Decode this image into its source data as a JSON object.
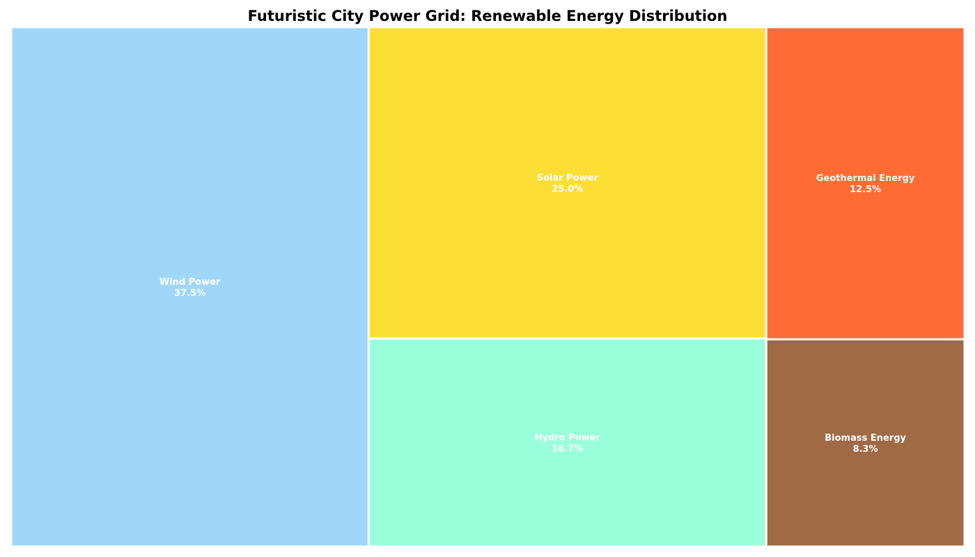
{
  "chart_data": {
    "type": "treemap",
    "title": "Futuristic City Power Grid: Renewable Energy Distribution",
    "unit": "%",
    "items": [
      {
        "name": "Wind Power",
        "value": 37.5,
        "label": "37.5%",
        "color": "#A0D7F8"
      },
      {
        "name": "Solar Power",
        "value": 25.0,
        "label": "25.0%",
        "color": "#FDDE35"
      },
      {
        "name": "Hydro Power",
        "value": 16.7,
        "label": "16.7%",
        "color": "#99FFDA"
      },
      {
        "name": "Geothermal Energy",
        "value": 12.5,
        "label": "12.5%",
        "color": "#FF6B35"
      },
      {
        "name": "Biomass Energy",
        "value": 8.3,
        "label": "8.3%",
        "color": "#A06A45"
      }
    ]
  }
}
